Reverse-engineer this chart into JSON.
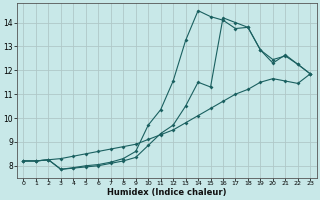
{
  "xlabel": "Humidex (Indice chaleur)",
  "bg_color": "#c8e8e8",
  "line_color": "#1a6060",
  "grid_color": "#b0c8c8",
  "xlim": [
    -0.5,
    23.5
  ],
  "ylim": [
    7.5,
    14.8
  ],
  "yticks": [
    8,
    9,
    10,
    11,
    12,
    13,
    14
  ],
  "xticks": [
    0,
    1,
    2,
    3,
    4,
    5,
    6,
    7,
    8,
    9,
    10,
    11,
    12,
    13,
    14,
    15,
    16,
    17,
    18,
    19,
    20,
    21,
    22,
    23
  ],
  "line1_x": [
    0,
    1,
    2,
    3,
    4,
    5,
    6,
    7,
    8,
    9,
    10,
    11,
    12,
    13,
    14,
    15,
    16,
    17,
    18,
    19,
    20,
    21,
    22,
    23
  ],
  "line1_y": [
    8.2,
    8.2,
    8.25,
    8.3,
    8.4,
    8.5,
    8.6,
    8.7,
    8.8,
    8.9,
    9.1,
    9.3,
    9.5,
    9.8,
    10.1,
    10.4,
    10.7,
    11.0,
    11.2,
    11.5,
    11.65,
    11.55,
    11.45,
    11.85
  ],
  "line2_x": [
    0,
    1,
    2,
    3,
    4,
    5,
    6,
    7,
    8,
    9,
    10,
    11,
    12,
    13,
    14,
    15,
    16,
    17,
    18,
    19,
    20,
    21,
    22,
    23
  ],
  "line2_y": [
    8.2,
    8.2,
    8.25,
    7.85,
    7.9,
    7.95,
    8.0,
    8.1,
    8.2,
    8.35,
    8.85,
    9.35,
    9.7,
    10.5,
    11.5,
    11.3,
    14.2,
    14.0,
    13.8,
    12.85,
    12.45,
    12.6,
    12.25,
    11.85
  ],
  "line3_x": [
    0,
    1,
    2,
    3,
    4,
    5,
    6,
    7,
    8,
    9,
    10,
    11,
    12,
    13,
    14,
    15,
    16,
    17,
    18,
    19,
    20,
    21,
    22,
    23
  ],
  "line3_y": [
    8.2,
    8.2,
    8.25,
    7.85,
    7.92,
    8.0,
    8.05,
    8.15,
    8.3,
    8.6,
    9.7,
    10.35,
    11.55,
    13.25,
    14.5,
    14.25,
    14.1,
    13.75,
    13.8,
    12.85,
    12.3,
    12.65,
    12.25,
    11.85
  ]
}
